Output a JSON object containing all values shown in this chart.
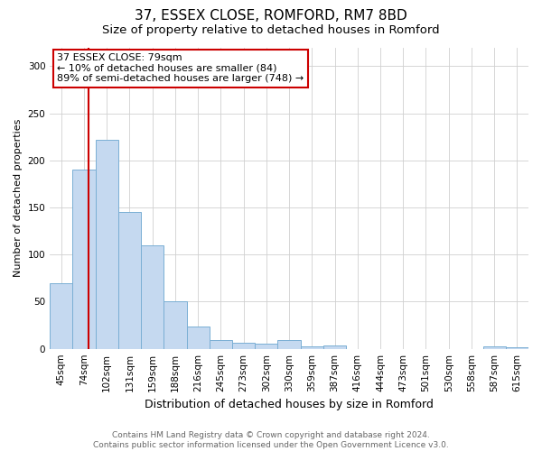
{
  "title1": "37, ESSEX CLOSE, ROMFORD, RM7 8BD",
  "title2": "Size of property relative to detached houses in Romford",
  "xlabel": "Distribution of detached houses by size in Romford",
  "ylabel": "Number of detached properties",
  "categories": [
    "45sqm",
    "74sqm",
    "102sqm",
    "131sqm",
    "159sqm",
    "188sqm",
    "216sqm",
    "245sqm",
    "273sqm",
    "302sqm",
    "330sqm",
    "359sqm",
    "387sqm",
    "416sqm",
    "444sqm",
    "473sqm",
    "501sqm",
    "530sqm",
    "558sqm",
    "587sqm",
    "615sqm"
  ],
  "values": [
    70,
    190,
    222,
    145,
    110,
    50,
    24,
    9,
    6,
    5,
    9,
    3,
    4,
    0,
    0,
    0,
    0,
    0,
    0,
    3,
    2
  ],
  "bar_color": "#c5d9f0",
  "bar_edge_color": "#7aafd4",
  "bar_width": 1.0,
  "ylim": [
    0,
    320
  ],
  "yticks": [
    0,
    50,
    100,
    150,
    200,
    250,
    300
  ],
  "property_line_color": "#cc0000",
  "annotation_text": "37 ESSEX CLOSE: 79sqm\n← 10% of detached houses are smaller (84)\n89% of semi-detached houses are larger (748) →",
  "annotation_box_color": "#ffffff",
  "annotation_box_edge": "#cc0000",
  "footer_text": "Contains HM Land Registry data © Crown copyright and database right 2024.\nContains public sector information licensed under the Open Government Licence v3.0.",
  "background_color": "#ffffff",
  "grid_color": "#d0d0d0",
  "title1_fontsize": 11,
  "title2_fontsize": 9.5,
  "xlabel_fontsize": 9,
  "ylabel_fontsize": 8,
  "tick_fontsize": 7.5,
  "annot_fontsize": 8,
  "footer_fontsize": 6.5
}
